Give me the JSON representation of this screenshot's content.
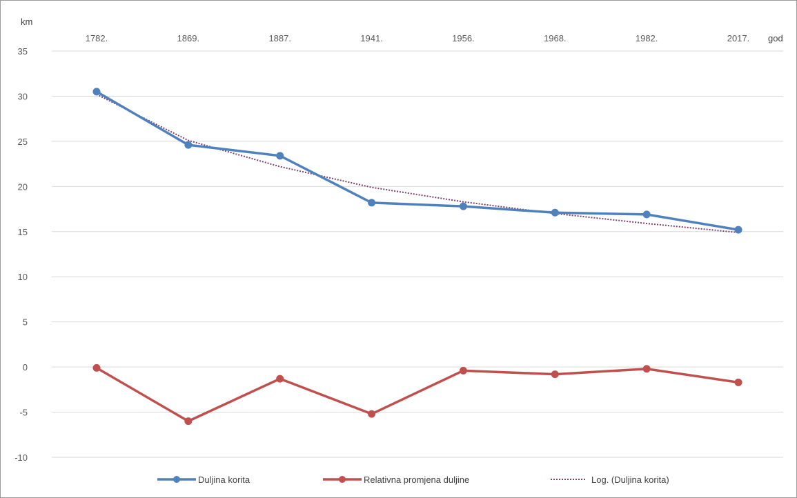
{
  "chart_data": {
    "type": "line",
    "y_unit_label": "km",
    "x_unit_label": "god",
    "categories": [
      "1782.",
      "1869.",
      "1887.",
      "1941.",
      "1956.",
      "1968.",
      "1982.",
      "2017."
    ],
    "ylim": [
      -10,
      35
    ],
    "yticks": [
      35,
      30,
      25,
      20,
      15,
      10,
      5,
      0,
      -5,
      -10
    ],
    "ytick_labels": [
      "35",
      "30",
      "25",
      "20",
      "15",
      "10",
      "5",
      "0",
      "-5",
      "-10"
    ],
    "grid": true,
    "legend_position": "bottom",
    "series": [
      {
        "name": "Duljina korita",
        "style": "line-marker",
        "color": "#4F81BD",
        "values": [
          30.5,
          24.6,
          23.4,
          18.2,
          17.8,
          17.1,
          16.9,
          15.2
        ]
      },
      {
        "name": "Relativna promjena duljine",
        "style": "line-marker",
        "color": "#C0504D",
        "values": [
          -0.1,
          -6.0,
          -1.3,
          -5.2,
          -0.4,
          -0.8,
          -0.2,
          -1.7
        ]
      },
      {
        "name": "Log. (Duljina korita)",
        "style": "dotted",
        "color": "#7B3F6E",
        "values": [
          30.2,
          25.1,
          22.2,
          19.9,
          18.3,
          17.0,
          15.9,
          14.9
        ]
      }
    ]
  }
}
